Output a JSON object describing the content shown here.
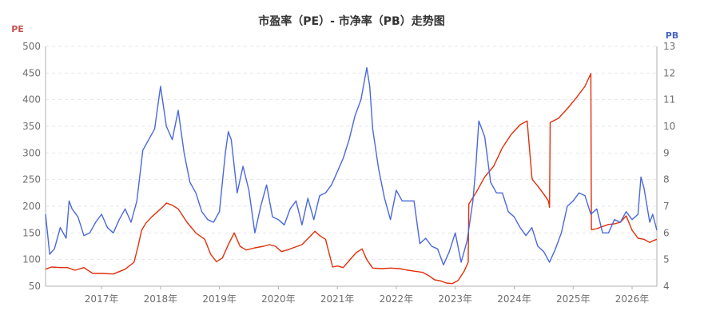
{
  "chart_data": {
    "type": "line",
    "title": "市盈率（PE）- 市净率（PB）走势图",
    "y_left": {
      "label": "PE",
      "range": [
        50,
        500
      ],
      "ticks": [
        50,
        100,
        150,
        200,
        250,
        300,
        350,
        400,
        450,
        500
      ],
      "color": "#c0504d"
    },
    "y_right": {
      "label": "PB",
      "range": [
        4,
        13
      ],
      "ticks": [
        4,
        5,
        6,
        7,
        8,
        9,
        10,
        11,
        12,
        13
      ],
      "color": "#4a64c8"
    },
    "x_axis": {
      "range": [
        2016.05,
        2026.42
      ],
      "tick_labels": [
        "2017年",
        "2018年",
        "2019年",
        "2020年",
        "2021年",
        "2022年",
        "2023年",
        "2024年",
        "2025年",
        "2026年"
      ],
      "tick_positions": [
        2017,
        2018,
        2019,
        2020,
        2021,
        2022,
        2023,
        2024,
        2025,
        2026
      ]
    },
    "grid": true,
    "series": [
      {
        "name": "PE",
        "axis": "left",
        "color": "#e0300a",
        "x": [
          2016.05,
          2016.15,
          2016.3,
          2016.42,
          2016.55,
          2016.7,
          2016.85,
          2017.0,
          2017.2,
          2017.4,
          2017.55,
          2017.62,
          2017.68,
          2017.75,
          2017.85,
          2017.95,
          2018.05,
          2018.1,
          2018.2,
          2018.3,
          2018.45,
          2018.6,
          2018.75,
          2018.85,
          2018.95,
          2019.05,
          2019.15,
          2019.25,
          2019.35,
          2019.45,
          2019.6,
          2019.75,
          2019.85,
          2019.95,
          2020.05,
          2020.15,
          2020.25,
          2020.4,
          2020.55,
          2020.62,
          2020.7,
          2020.8,
          2020.92,
          2021.0,
          2021.1,
          2021.2,
          2021.32,
          2021.42,
          2021.5,
          2021.6,
          2021.75,
          2021.9,
          2022.05,
          2022.2,
          2022.32,
          2022.45,
          2022.55,
          2022.65,
          2022.75,
          2022.85,
          2022.95,
          2023.05,
          2023.15,
          2023.22,
          2023.23,
          2023.35,
          2023.5,
          2023.65,
          2023.8,
          2023.95,
          2024.1,
          2024.22,
          2024.3,
          2024.31,
          2024.4,
          2024.5,
          2024.58,
          2024.6,
          2024.61,
          2024.75,
          2024.9,
          2025.05,
          2025.2,
          2025.3,
          2025.31,
          2025.4,
          2025.5,
          2025.6,
          2025.7,
          2025.8,
          2025.9,
          2026.0,
          2026.1,
          2026.2,
          2026.3,
          2026.35,
          2026.42
        ],
        "y": [
          82,
          86,
          85,
          85,
          80,
          85,
          74,
          74,
          73,
          82,
          95,
          125,
          155,
          168,
          180,
          190,
          200,
          206,
          202,
          195,
          170,
          150,
          138,
          110,
          96,
          103,
          128,
          150,
          125,
          118,
          122,
          125,
          128,
          125,
          115,
          118,
          122,
          128,
          145,
          153,
          145,
          138,
          86,
          88,
          85,
          98,
          113,
          120,
          100,
          84,
          83,
          84,
          83,
          80,
          78,
          76,
          70,
          62,
          60,
          56,
          55,
          61,
          78,
          95,
          204,
          225,
          255,
          275,
          310,
          335,
          353,
          360,
          255,
          250,
          238,
          223,
          210,
          198,
          357,
          365,
          383,
          403,
          425,
          449,
          156,
          158,
          162,
          166,
          167,
          170,
          182,
          155,
          140,
          138,
          132,
          135,
          138
        ]
      },
      {
        "name": "PB",
        "axis": "right",
        "color": "#4a68dc",
        "x": [
          2016.05,
          2016.12,
          2016.2,
          2016.3,
          2016.4,
          2016.45,
          2016.5,
          2016.6,
          2016.7,
          2016.8,
          2016.9,
          2017.0,
          2017.1,
          2017.2,
          2017.3,
          2017.4,
          2017.5,
          2017.6,
          2017.7,
          2017.8,
          2017.9,
          2018.0,
          2018.1,
          2018.2,
          2018.3,
          2018.4,
          2018.5,
          2018.6,
          2018.7,
          2018.8,
          2018.9,
          2019.0,
          2019.1,
          2019.15,
          2019.2,
          2019.3,
          2019.4,
          2019.5,
          2019.6,
          2019.7,
          2019.8,
          2019.9,
          2020.0,
          2020.1,
          2020.2,
          2020.3,
          2020.4,
          2020.5,
          2020.6,
          2020.7,
          2020.8,
          2020.9,
          2021.0,
          2021.1,
          2021.2,
          2021.3,
          2021.4,
          2021.5,
          2021.55,
          2021.6,
          2021.7,
          2021.8,
          2021.9,
          2022.0,
          2022.1,
          2022.2,
          2022.3,
          2022.4,
          2022.5,
          2022.6,
          2022.7,
          2022.8,
          2022.9,
          2023.0,
          2023.1,
          2023.2,
          2023.3,
          2023.35,
          2023.4,
          2023.5,
          2023.6,
          2023.7,
          2023.8,
          2023.9,
          2024.0,
          2024.1,
          2024.2,
          2024.3,
          2024.4,
          2024.5,
          2024.6,
          2024.7,
          2024.8,
          2024.9,
          2025.0,
          2025.1,
          2025.2,
          2025.3,
          2025.4,
          2025.5,
          2025.6,
          2025.7,
          2025.8,
          2025.9,
          2026.0,
          2026.1,
          2026.15,
          2026.2,
          2026.3,
          2026.35,
          2026.42
        ],
        "y": [
          6.7,
          5.2,
          5.4,
          6.2,
          5.8,
          7.2,
          6.9,
          6.6,
          5.9,
          6.0,
          6.4,
          6.7,
          6.2,
          6.0,
          6.5,
          6.9,
          6.4,
          7.2,
          9.1,
          9.5,
          9.9,
          11.5,
          10.0,
          9.5,
          10.6,
          9.0,
          7.9,
          7.5,
          6.8,
          6.5,
          6.4,
          6.8,
          9.0,
          9.8,
          9.5,
          7.5,
          8.5,
          7.6,
          6.0,
          7.0,
          7.8,
          6.6,
          6.5,
          6.3,
          6.9,
          7.2,
          6.3,
          7.3,
          6.5,
          7.4,
          7.5,
          7.8,
          8.3,
          8.8,
          9.5,
          10.4,
          11.0,
          12.2,
          11.5,
          9.9,
          8.4,
          7.3,
          6.5,
          7.6,
          7.2,
          7.2,
          7.2,
          5.6,
          5.8,
          5.5,
          5.4,
          4.8,
          5.3,
          6.0,
          4.9,
          5.7,
          7.2,
          8.5,
          10.2,
          9.6,
          7.9,
          7.5,
          7.5,
          6.8,
          6.6,
          6.2,
          5.9,
          6.2,
          5.5,
          5.3,
          4.9,
          5.4,
          6.0,
          7.0,
          7.2,
          7.5,
          7.4,
          6.7,
          6.9,
          6.0,
          6.0,
          6.5,
          6.4,
          6.8,
          6.5,
          6.7,
          8.1,
          7.7,
          6.4,
          6.7,
          6.1
        ]
      }
    ]
  }
}
